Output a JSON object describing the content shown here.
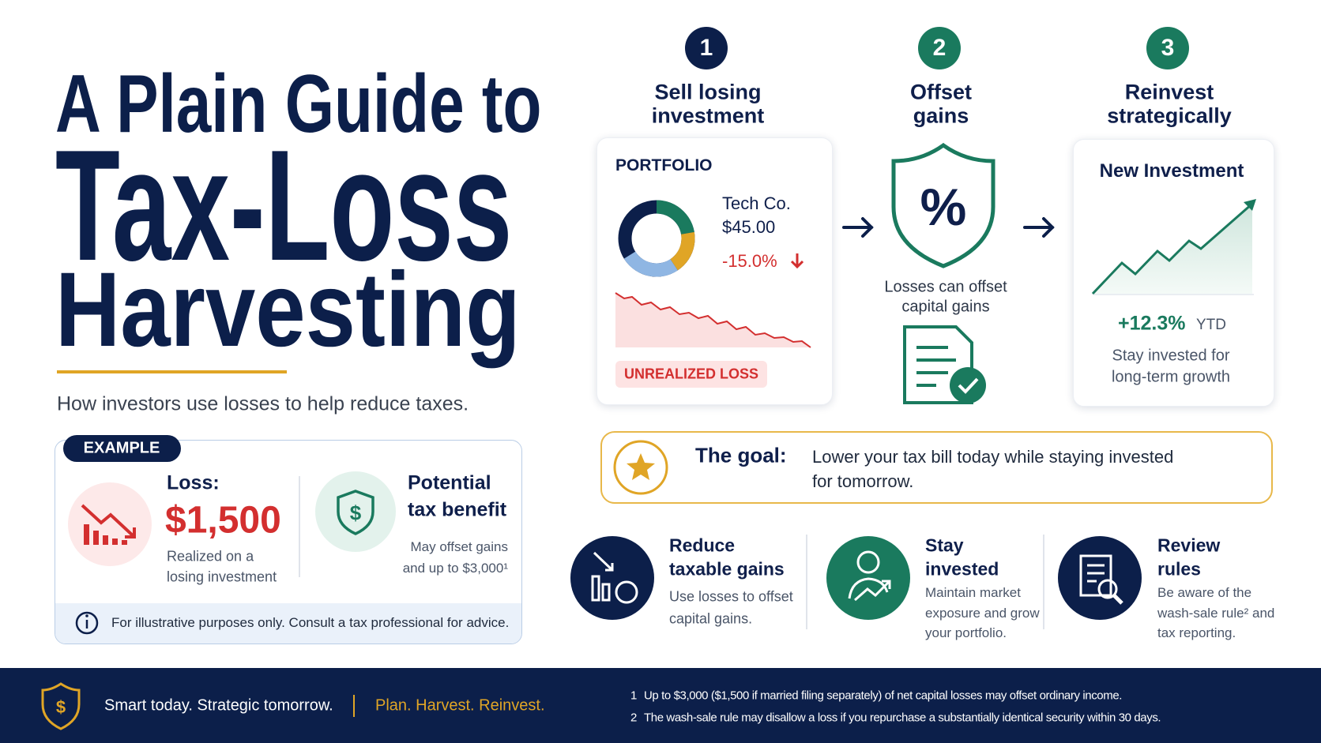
{
  "header": {
    "title_lines": [
      "A Plain Guide to",
      "Tax-Loss",
      "Harvesting"
    ],
    "subtitle": "How investors use losses to help reduce taxes."
  },
  "example": {
    "badge": "EXAMPLE",
    "loss_label": "Loss:",
    "loss_amount": "$1,500",
    "loss_note_lines": [
      "Realized on a",
      "losing investment"
    ],
    "currency_symbol": "$",
    "benefit_title_lines": [
      "Potential",
      "tax benefit"
    ],
    "benefit_note_lines": [
      "May offset gains",
      "and up to $3,000¹"
    ],
    "disclaimer": "For illustrative purposes only. Consult a tax professional for advice."
  },
  "steps": [
    {
      "number": "1",
      "title_lines": [
        "Sell losing",
        "investment"
      ]
    },
    {
      "number": "2",
      "title_lines": [
        "Offset",
        "gains"
      ]
    },
    {
      "number": "3",
      "title_lines": [
        "Reinvest",
        "strategically"
      ]
    }
  ],
  "portfolio": {
    "heading": "PORTFOLIO",
    "holding": "Tech Co.",
    "price": "$45.00",
    "change": "-15.0%",
    "badge": "UNREALIZED LOSS"
  },
  "offset": {
    "percent_symbol": "%",
    "caption_lines": [
      "Losses can offset",
      "capital gains"
    ]
  },
  "new_investment": {
    "heading": "New Investment",
    "return": "+12.3%",
    "return_period": "YTD",
    "caption_lines": [
      "Stay invested for",
      "long-term growth"
    ]
  },
  "goal": {
    "label": "The goal:",
    "text_lines": [
      "Lower your tax bill today while staying invested",
      "for tomorrow."
    ]
  },
  "benefits": [
    {
      "title_lines": [
        "Reduce",
        "taxable gains"
      ],
      "text_lines": [
        "Use losses to offset",
        "capital gains."
      ]
    },
    {
      "title_lines": [
        "Stay",
        "invested"
      ],
      "text_lines": [
        "Maintain market",
        "exposure and grow",
        "your portfolio."
      ]
    },
    {
      "title_lines": [
        "Review",
        "rules"
      ],
      "text_lines": [
        "Be aware of the",
        "wash-sale rule² and",
        "tax reporting."
      ]
    }
  ],
  "footer": {
    "currency_symbol": "$",
    "tagline": "Smart today. Strategic tomorrow.",
    "motto": "Plan. Harvest. Reinvest.",
    "footnotes": [
      {
        "number": "1",
        "text": "Up to $3,000 ($1,500 if married filing separately) of net capital losses may offset ordinary income."
      },
      {
        "number": "2",
        "text": "The wash-sale rule may disallow a loss if you repurchase a substantially identical security within 30 days."
      }
    ]
  }
}
